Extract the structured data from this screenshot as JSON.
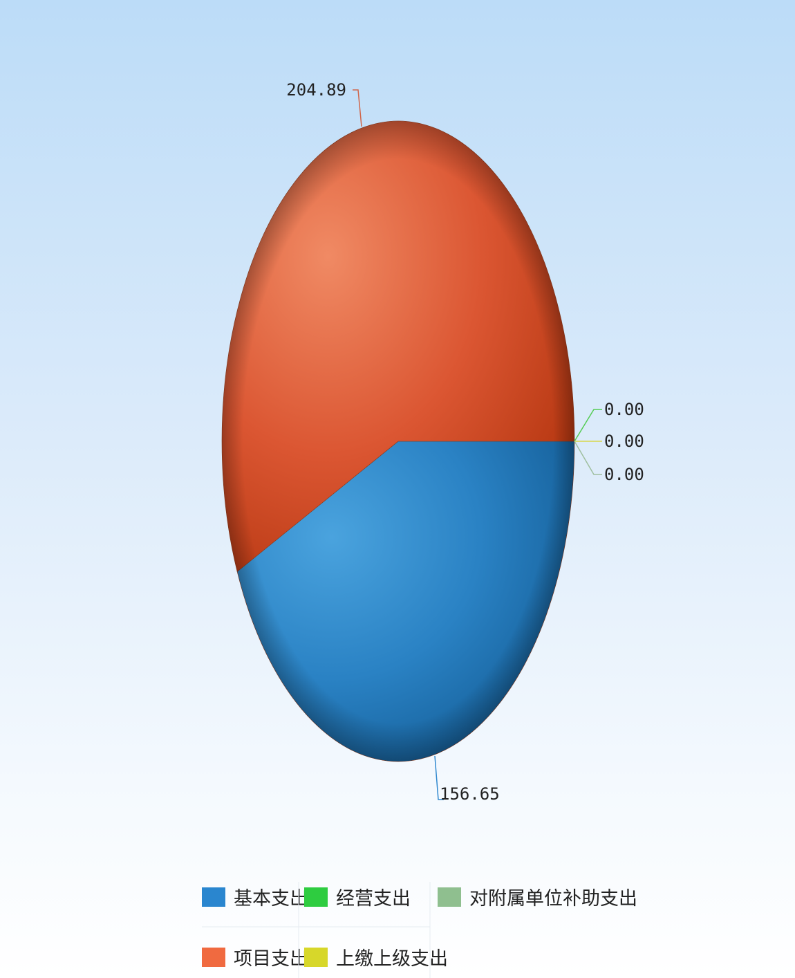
{
  "chart_data": {
    "type": "pie",
    "title": "",
    "series": [
      {
        "name": "基本支出",
        "value": 156.65,
        "label": "156.65",
        "color": "#2680c8"
      },
      {
        "name": "项目支出",
        "value": 204.89,
        "label": "204.89",
        "color": "#d9482a"
      },
      {
        "name": "经营支出",
        "value": 0.0,
        "label": "0.00",
        "color": "#2ecc40"
      },
      {
        "name": "上缴上级支出",
        "value": 0.0,
        "label": "0.00",
        "color": "#d7d72a"
      },
      {
        "name": "对附属单位补助支出",
        "value": 0.0,
        "label": "0.00",
        "color": "#8fbf8f"
      }
    ],
    "legend": {
      "position": "bottom",
      "items": [
        {
          "name": "基本支出",
          "color": "#2a86cf"
        },
        {
          "name": "经营支出",
          "color": "#2ecc40"
        },
        {
          "name": "对附属单位补助支出",
          "color": "#8fbf8f"
        },
        {
          "name": "项目支出",
          "color": "#f06a40"
        },
        {
          "name": "上缴上级支出",
          "color": "#d7d72a"
        }
      ]
    }
  }
}
